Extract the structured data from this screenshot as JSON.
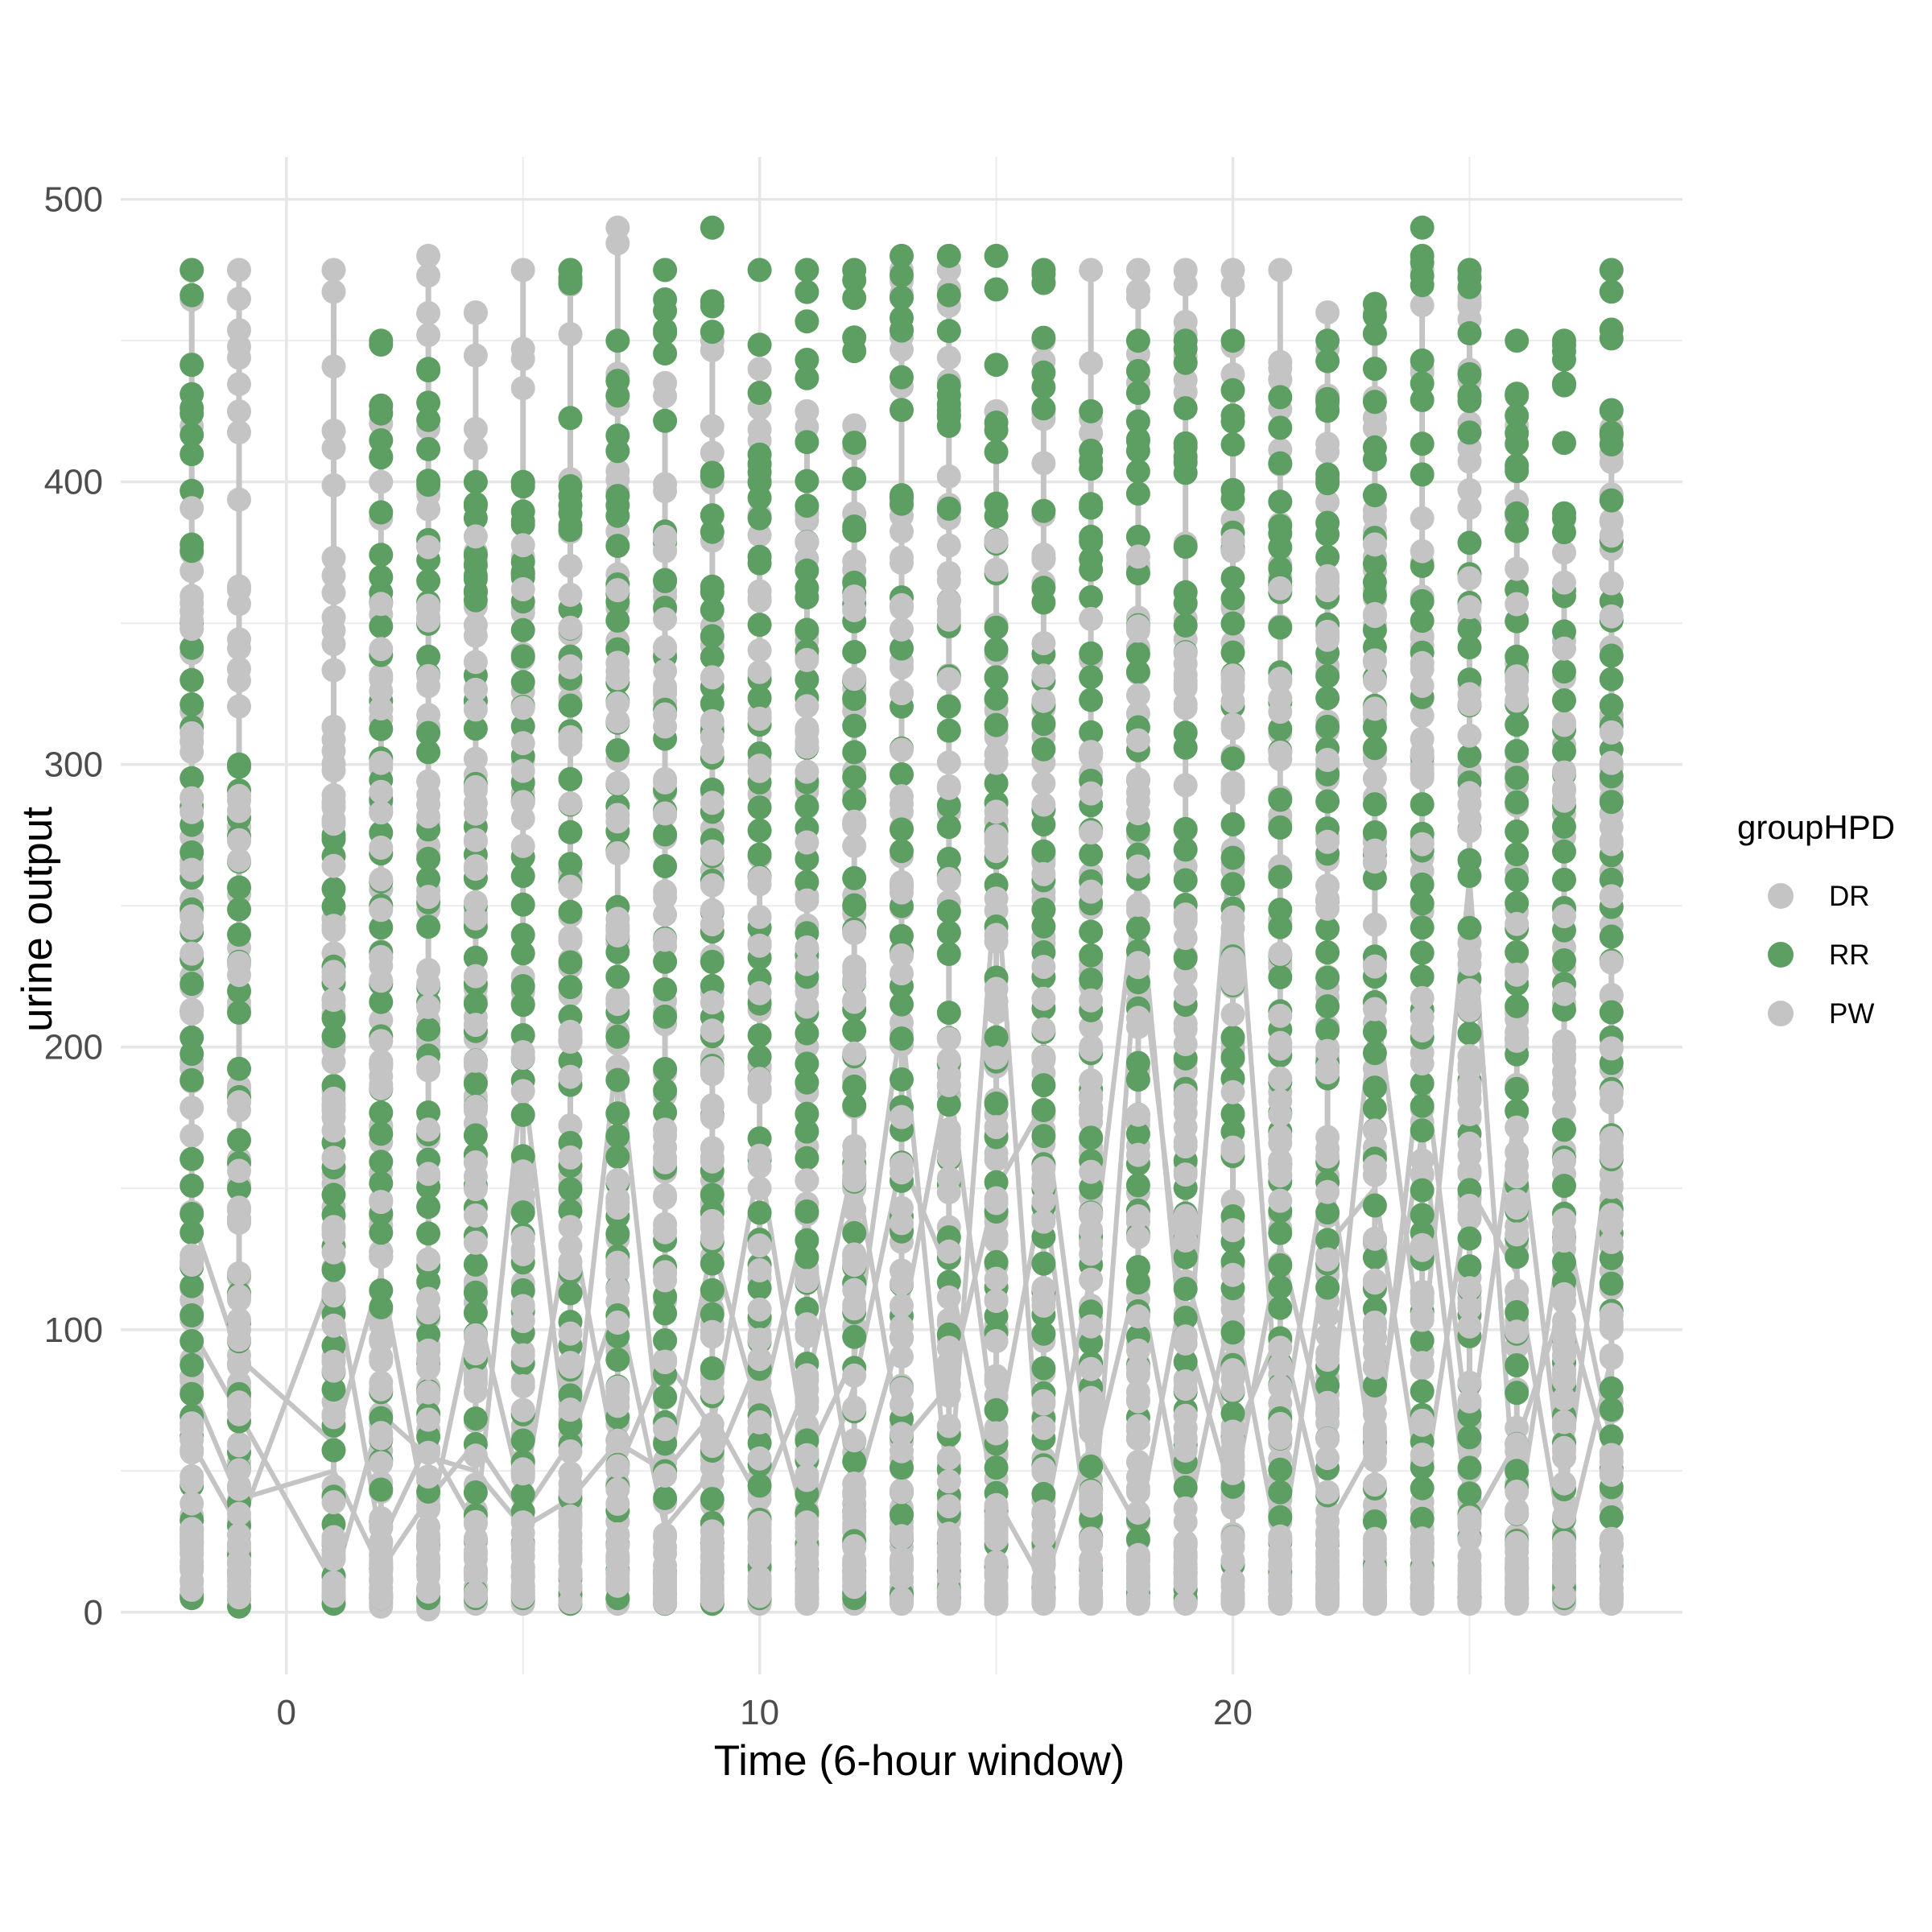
{
  "chart_data": {
    "type": "scatter",
    "title": "",
    "xlabel": "Time (6-hour window)",
    "ylabel": "urine output",
    "xlim": [
      -3.5,
      29.5
    ],
    "ylim": [
      -22,
      515
    ],
    "x_ticks": [
      0,
      10,
      20
    ],
    "x_tick_labels": [
      "0",
      "10",
      "20"
    ],
    "y_ticks": [
      0,
      100,
      200,
      300,
      400,
      500
    ],
    "y_tick_labels": [
      "0",
      "100",
      "200",
      "300",
      "400",
      "500"
    ],
    "grid": true,
    "legend": {
      "title": "groupHPD",
      "placement": "right",
      "entries": [
        {
          "label": "DR",
          "color": "#c4c4c4"
        },
        {
          "label": "RR",
          "color": "#5d9e62"
        },
        {
          "label": "PW",
          "color": "#c4c4c4"
        }
      ]
    },
    "columns": [
      -2,
      -1,
      1,
      2,
      3,
      4,
      5,
      6,
      7,
      8,
      9,
      10,
      11,
      12,
      13,
      14,
      15,
      16,
      17,
      18,
      19,
      20,
      21,
      22,
      23,
      24,
      25,
      26,
      27,
      28
    ],
    "series": [
      {
        "name": "RR",
        "color": "#5d9e62",
        "column_max": [
          475,
          300,
          275,
          450,
          440,
          400,
          400,
          475,
          450,
          475,
          490,
          475,
          475,
          475,
          480,
          480,
          480,
          475,
          425,
          450,
          450,
          450,
          430,
          450,
          463,
          490,
          475,
          450,
          450,
          475
        ],
        "column_min": [
          5,
          2,
          3,
          5,
          5,
          5,
          5,
          3,
          5,
          3,
          3,
          5,
          5,
          5,
          5,
          5,
          5,
          5,
          5,
          5,
          5,
          5,
          5,
          5,
          5,
          5,
          5,
          5,
          5,
          5
        ]
      },
      {
        "name": "DR",
        "color": "#c4c4c4",
        "column_max": [
          475,
          475,
          475,
          425,
          480,
          460,
          475,
          475,
          490,
          435,
          450,
          440,
          425,
          420,
          475,
          475,
          425,
          450,
          475,
          475,
          475,
          475,
          475,
          460,
          460,
          475,
          475,
          420,
          375,
          425
        ],
        "column_min": [
          15,
          5,
          5,
          2,
          1,
          3,
          3,
          3,
          3,
          3,
          3,
          3,
          3,
          3,
          3,
          3,
          3,
          3,
          3,
          3,
          3,
          3,
          3,
          3,
          3,
          3,
          3,
          3,
          3,
          3
        ],
        "trajectories": [
          [
            [
              -2,
              140
            ],
            [
              -1,
              90
            ],
            [
              1,
              60
            ],
            [
              2,
              120
            ],
            [
              3,
              30
            ],
            [
              4,
              110
            ],
            [
              5,
              40
            ],
            [
              6,
              140
            ],
            [
              7,
              50
            ],
            [
              8,
              90
            ],
            [
              9,
              65
            ],
            [
              10,
              160
            ],
            [
              11,
              55
            ],
            [
              12,
              90
            ],
            [
              13,
              210
            ],
            [
              14,
              40
            ],
            [
              15,
              260
            ],
            [
              16,
              30
            ],
            [
              17,
              120
            ],
            [
              18,
              260
            ],
            [
              19,
              80
            ],
            [
              20,
              280
            ],
            [
              21,
              60
            ],
            [
              22,
              160
            ],
            [
              23,
              50
            ],
            [
              24,
              200
            ],
            [
              25,
              60
            ],
            [
              26,
              180
            ],
            [
              27,
              40
            ],
            [
              28,
              170
            ]
          ],
          [
            [
              -2,
              60
            ],
            [
              -1,
              30
            ],
            [
              1,
              120
            ],
            [
              2,
              25
            ],
            [
              3,
              60
            ],
            [
              4,
              30
            ],
            [
              5,
              190
            ],
            [
              6,
              50
            ],
            [
              7,
              200
            ],
            [
              8,
              45
            ],
            [
              9,
              130
            ],
            [
              10,
              70
            ],
            [
              11,
              140
            ],
            [
              12,
              40
            ],
            [
              13,
              100
            ],
            [
              14,
              190
            ],
            [
              15,
              60
            ],
            [
              16,
              150
            ],
            [
              17,
              20
            ],
            [
              18,
              240
            ],
            [
              19,
              100
            ],
            [
              20,
              40
            ],
            [
              21,
              130
            ],
            [
              22,
              60
            ],
            [
              23,
              220
            ],
            [
              24,
              90
            ],
            [
              25,
              260
            ],
            [
              26,
              30
            ],
            [
              27,
              140
            ],
            [
              28,
              60
            ]
          ],
          [
            [
              -2,
              100
            ],
            [
              -1,
              70
            ],
            [
              1,
              10
            ],
            [
              2,
              70
            ],
            [
              3,
              55
            ],
            [
              4,
              50
            ],
            [
              5,
              30
            ],
            [
              6,
              40
            ],
            [
              7,
              60
            ],
            [
              8,
              50
            ],
            [
              9,
              70
            ],
            [
              10,
              40
            ],
            [
              11,
              80
            ],
            [
              12,
              160
            ],
            [
              13,
              60
            ],
            [
              14,
              80
            ],
            [
              15,
              150
            ],
            [
              16,
              180
            ],
            [
              17,
              50
            ],
            [
              18,
              120
            ],
            [
              19,
              30
            ],
            [
              20,
              110
            ],
            [
              21,
              20
            ],
            [
              22,
              130
            ],
            [
              23,
              150
            ],
            [
              24,
              40
            ],
            [
              25,
              150
            ],
            [
              26,
              120
            ],
            [
              27,
              20
            ],
            [
              28,
              90
            ]
          ],
          [
            [
              -2,
              80
            ],
            [
              -1,
              40
            ],
            [
              1,
              50
            ],
            [
              2,
              15
            ],
            [
              3,
              40
            ],
            [
              4,
              60
            ],
            [
              5,
              35
            ],
            [
              6,
              60
            ],
            [
              7,
              110
            ],
            [
              8,
              30
            ],
            [
              9,
              50
            ],
            [
              10,
              90
            ],
            [
              11,
              30
            ],
            [
              12,
              80
            ],
            [
              13,
              160
            ],
            [
              14,
              120
            ],
            [
              15,
              40
            ],
            [
              16,
              10
            ],
            [
              17,
              60
            ],
            [
              18,
              30
            ],
            [
              19,
              120
            ],
            [
              20,
              60
            ],
            [
              21,
              100
            ],
            [
              22,
              30
            ],
            [
              23,
              60
            ],
            [
              24,
              170
            ],
            [
              25,
              30
            ],
            [
              26,
              60
            ],
            [
              27,
              110
            ],
            [
              28,
              50
            ]
          ]
        ]
      },
      {
        "name": "PW",
        "color": "#c4c4c4",
        "column_max": [],
        "column_min": []
      }
    ]
  }
}
